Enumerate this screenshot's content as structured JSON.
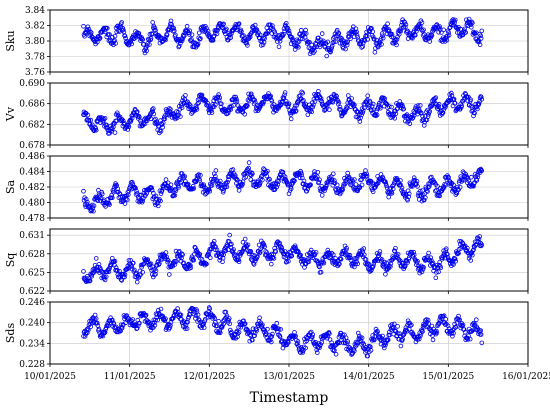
{
  "chart_data": {
    "type": "scatter",
    "xlabel": "Timestamp",
    "x_ticks": [
      "10/01/2025",
      "11/01/2025",
      "12/01/2025",
      "13/01/2025",
      "14/01/2025",
      "15/01/2025",
      "16/01/2025"
    ],
    "x_range": [
      "10/01/2025",
      "16/01/2025"
    ],
    "x_data_span": [
      "10/01/2025 10:00",
      "15/01/2025 10:00"
    ],
    "marker": "open-circle",
    "marker_color": "#0000ee",
    "grid": true,
    "panels": [
      {
        "ylabel": "Sku",
        "ylim": [
          3.76,
          3.84
        ],
        "yticks": [
          "3.84",
          "3.82",
          "3.80",
          "3.78",
          "3.76"
        ],
        "trend": [
          [
            0,
            3.805
          ],
          [
            0.2,
            3.806
          ],
          [
            0.35,
            3.804
          ],
          [
            0.45,
            3.812
          ],
          [
            0.62,
            3.808
          ],
          [
            0.75,
            3.798
          ],
          [
            0.9,
            3.803
          ],
          [
            1.2,
            3.809
          ],
          [
            1.35,
            3.805
          ],
          [
            1.5,
            3.807
          ],
          [
            1.8,
            3.812
          ],
          [
            2.2,
            3.811
          ],
          [
            2.5,
            3.806
          ],
          [
            2.9,
            3.8
          ],
          [
            3.1,
            3.796
          ],
          [
            3.5,
            3.806
          ],
          [
            3.9,
            3.809
          ],
          [
            4.3,
            3.812
          ],
          [
            4.7,
            3.815
          ],
          [
            5.0,
            3.808
          ]
        ]
      },
      {
        "ylabel": "Vv",
        "ylim": [
          0.678,
          0.69
        ],
        "yticks": [
          "0.690",
          "0.686",
          "0.682",
          "0.678"
        ],
        "trend": [
          [
            0,
            0.6822
          ],
          [
            0.4,
            0.6825
          ],
          [
            0.8,
            0.6827
          ],
          [
            1.0,
            0.683
          ],
          [
            1.2,
            0.6855
          ],
          [
            1.6,
            0.6857
          ],
          [
            2.0,
            0.6858
          ],
          [
            2.4,
            0.686
          ],
          [
            2.8,
            0.6862
          ],
          [
            3.2,
            0.6858
          ],
          [
            3.6,
            0.6852
          ],
          [
            3.9,
            0.6848
          ],
          [
            4.2,
            0.6842
          ],
          [
            4.5,
            0.6853
          ],
          [
            4.8,
            0.6862
          ],
          [
            5.0,
            0.6868
          ]
        ]
      },
      {
        "ylabel": "Sa",
        "ylim": [
          0.478,
          0.486
        ],
        "yticks": [
          "0.486",
          "0.484",
          "0.482",
          "0.480",
          "0.478"
        ],
        "trend": [
          [
            0,
            0.48
          ],
          [
            0.4,
            0.4807
          ],
          [
            0.8,
            0.4813
          ],
          [
            1.2,
            0.482
          ],
          [
            1.6,
            0.4826
          ],
          [
            2.0,
            0.483
          ],
          [
            2.4,
            0.483
          ],
          [
            2.8,
            0.4825
          ],
          [
            3.2,
            0.4825
          ],
          [
            3.6,
            0.4824
          ],
          [
            4.0,
            0.4822
          ],
          [
            4.3,
            0.4812
          ],
          [
            4.6,
            0.4825
          ],
          [
            5.0,
            0.4835
          ]
        ]
      },
      {
        "ylabel": "Sq",
        "ylim": [
          0.622,
          0.632
        ],
        "yticks": [
          "0.631",
          "0.628",
          "0.625",
          "0.622"
        ],
        "trend": [
          [
            0,
            0.6245
          ],
          [
            0.4,
            0.6252
          ],
          [
            0.8,
            0.626
          ],
          [
            1.2,
            0.6268
          ],
          [
            1.6,
            0.628
          ],
          [
            2.0,
            0.6285
          ],
          [
            2.4,
            0.6283
          ],
          [
            2.8,
            0.6275
          ],
          [
            3.2,
            0.6272
          ],
          [
            3.6,
            0.627
          ],
          [
            4.0,
            0.6268
          ],
          [
            4.3,
            0.6262
          ],
          [
            4.6,
            0.6275
          ],
          [
            5.0,
            0.629
          ]
        ]
      },
      {
        "ylabel": "Sds",
        "ylim": [
          0.228,
          0.246
        ],
        "yticks": [
          "0.246",
          "0.240",
          "0.234",
          "0.228"
        ],
        "trend": [
          [
            0,
            0.2385
          ],
          [
            0.4,
            0.2395
          ],
          [
            0.8,
            0.2405
          ],
          [
            1.2,
            0.242
          ],
          [
            1.6,
            0.2405
          ],
          [
            2.0,
            0.2385
          ],
          [
            2.4,
            0.2365
          ],
          [
            2.8,
            0.2345
          ],
          [
            3.2,
            0.234
          ],
          [
            3.6,
            0.234
          ],
          [
            4.0,
            0.237
          ],
          [
            4.4,
            0.239
          ],
          [
            4.7,
            0.2385
          ],
          [
            5.0,
            0.2375
          ]
        ]
      }
    ]
  }
}
